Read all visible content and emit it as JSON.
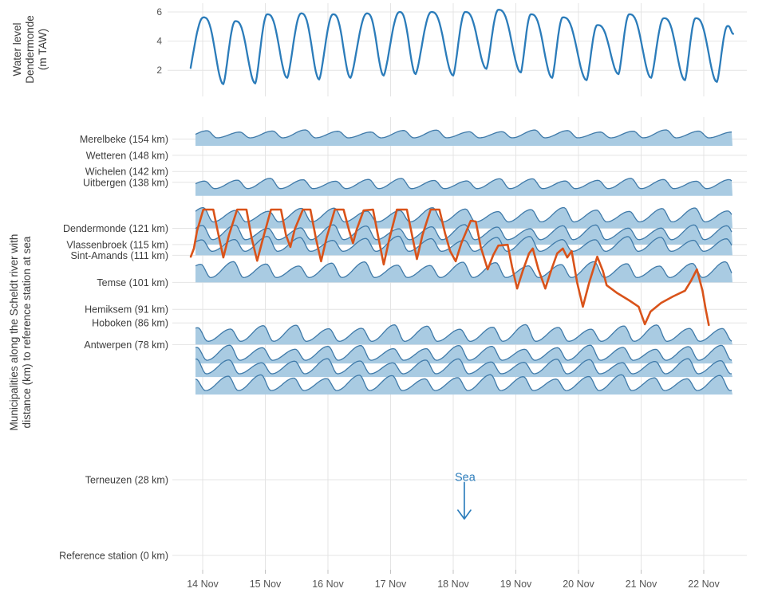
{
  "figure": {
    "description": "Tidal water levels along the Scheldt river",
    "background": "#ffffff"
  },
  "colors": {
    "tide_line": "#2b7cba",
    "ridge_fill": "#a9cbe2",
    "ridge_stroke": "#3f7aa9",
    "overlay_line": "#d9531a",
    "grid": "#e4e4e4",
    "tick_mark": "#c0c0c0",
    "axis_text": "#555555",
    "label_text": "#3c3c3c",
    "annotation": "#2e7ebc"
  },
  "chart_data": [
    {
      "type": "line",
      "panel": "top",
      "series_name": "Water level Dendermonde",
      "ylabel_lines": [
        "Water level",
        "Dendermonde",
        "(m TAW)"
      ],
      "yticks": [
        2,
        4,
        6
      ],
      "ylim": [
        0.5,
        6.5
      ],
      "x_unit": "days since 14 Nov 00:00",
      "xlim": [
        -0.22,
        8.5
      ],
      "grid": true,
      "extrema_t_value": [
        [
          -0.26,
          1.0
        ],
        [
          0.01,
          5.63
        ],
        [
          0.33,
          1.05
        ],
        [
          0.52,
          5.37
        ],
        [
          0.84,
          1.1
        ],
        [
          1.03,
          5.84
        ],
        [
          1.35,
          1.48
        ],
        [
          1.57,
          5.9
        ],
        [
          1.86,
          1.37
        ],
        [
          2.08,
          5.84
        ],
        [
          2.36,
          1.48
        ],
        [
          2.62,
          5.9
        ],
        [
          2.89,
          1.64
        ],
        [
          3.14,
          6.0
        ],
        [
          3.4,
          1.74
        ],
        [
          3.65,
          6.0
        ],
        [
          4.0,
          1.64
        ],
        [
          4.19,
          6.0
        ],
        [
          4.53,
          2.1
        ],
        [
          4.72,
          6.15
        ],
        [
          5.08,
          1.85
        ],
        [
          5.24,
          5.84
        ],
        [
          5.58,
          1.48
        ],
        [
          5.75,
          5.63
        ],
        [
          6.13,
          1.32
        ],
        [
          6.3,
          5.1
        ],
        [
          6.64,
          1.74
        ],
        [
          6.81,
          5.84
        ],
        [
          7.16,
          1.48
        ],
        [
          7.36,
          5.57
        ],
        [
          7.7,
          1.32
        ],
        [
          7.87,
          5.57
        ],
        [
          8.21,
          1.2
        ],
        [
          8.38,
          5.04
        ],
        [
          8.47,
          4.5
        ]
      ]
    },
    {
      "type": "ridgeline",
      "panel": "bottom",
      "ylabel_lines": [
        "Municipalities along the Scheldt river with",
        "distance (km) to reference station at sea"
      ],
      "x_tick_labels": [
        "14 Nov",
        "15 Nov",
        "16 Nov",
        "17 Nov",
        "18 Nov",
        "19 Nov",
        "20 Nov",
        "21 Nov",
        "22 Nov"
      ],
      "station_breaks": [
        {
          "label": "Merelbeke (154 km)",
          "km": 154
        },
        {
          "label": "Wetteren (148 km)",
          "km": 148
        },
        {
          "label": "Wichelen (142 km)",
          "km": 142
        },
        {
          "label": "Uitbergen (138 km)",
          "km": 138
        },
        {
          "label": "Dendermonde (121 km)",
          "km": 121
        },
        {
          "label": "Vlassenbroek (115 km)",
          "km": 115
        },
        {
          "label": "Sint-Amands (111 km)",
          "km": 111
        },
        {
          "label": "Temse (101 km)",
          "km": 101
        },
        {
          "label": "Hemiksem (91 km)",
          "km": 91
        },
        {
          "label": "Hoboken (86 km)",
          "km": 86
        },
        {
          "label": "Antwerpen (78 km)",
          "km": 78
        },
        {
          "label": "Terneuzen (28 km)",
          "km": 28
        },
        {
          "label": "Reference station (0 km)",
          "km": 0
        }
      ],
      "ridges": [
        {
          "km": 151.5,
          "amp": 20,
          "min": 10
        },
        {
          "km": 133.0,
          "amp": 22,
          "min": 9
        },
        {
          "km": 121.0,
          "amp": 26,
          "min": 8
        },
        {
          "km": 115.0,
          "amp": 25,
          "min": 6
        },
        {
          "km": 111.0,
          "amp": 24,
          "min": 5
        },
        {
          "km": 101.0,
          "amp": 26,
          "min": 6
        },
        {
          "km": 78.0,
          "amp": 25,
          "min": 4
        },
        {
          "km": 71.0,
          "amp": 23,
          "min": 4
        },
        {
          "km": 66.0,
          "amp": 23,
          "min": 4
        },
        {
          "km": 59.5,
          "amp": 25,
          "min": 5
        }
      ],
      "tide_period_days": 0.5234,
      "overlay_line": {
        "name": "Dendermonde water level (mapped to river distance)",
        "points_t_km": [
          [
            -0.19,
            110.5
          ],
          [
            -0.14,
            113.5
          ],
          [
            -0.09,
            120.0
          ],
          [
            0.01,
            127.9
          ],
          [
            0.17,
            127.9
          ],
          [
            0.24,
            120.0
          ],
          [
            0.33,
            110.2
          ],
          [
            0.42,
            118.5
          ],
          [
            0.55,
            127.9
          ],
          [
            0.7,
            127.9
          ],
          [
            0.78,
            117.6
          ],
          [
            0.87,
            109.0
          ],
          [
            0.96,
            117.0
          ],
          [
            1.09,
            127.9
          ],
          [
            1.25,
            127.9
          ],
          [
            1.33,
            118.5
          ],
          [
            1.4,
            114.1
          ],
          [
            1.47,
            120.6
          ],
          [
            1.6,
            127.9
          ],
          [
            1.72,
            127.9
          ],
          [
            1.81,
            117.0
          ],
          [
            1.89,
            108.8
          ],
          [
            1.98,
            117.6
          ],
          [
            2.11,
            127.9
          ],
          [
            2.25,
            127.9
          ],
          [
            2.34,
            120.0
          ],
          [
            2.4,
            115.5
          ],
          [
            2.46,
            120.6
          ],
          [
            2.57,
            127.6
          ],
          [
            2.72,
            127.9
          ],
          [
            2.81,
            117.0
          ],
          [
            2.89,
            107.6
          ],
          [
            2.98,
            117.0
          ],
          [
            3.1,
            127.9
          ],
          [
            3.26,
            127.9
          ],
          [
            3.35,
            117.6
          ],
          [
            3.42,
            109.6
          ],
          [
            3.51,
            118.5
          ],
          [
            3.64,
            127.9
          ],
          [
            3.78,
            127.9
          ],
          [
            3.87,
            119.1
          ],
          [
            3.95,
            112.6
          ],
          [
            4.04,
            108.8
          ],
          [
            4.13,
            115.5
          ],
          [
            4.28,
            123.8
          ],
          [
            4.36,
            123.5
          ],
          [
            4.44,
            114.1
          ],
          [
            4.55,
            105.8
          ],
          [
            4.64,
            111.1
          ],
          [
            4.72,
            114.6
          ],
          [
            4.87,
            114.9
          ],
          [
            4.94,
            106.7
          ],
          [
            5.02,
            98.7
          ],
          [
            5.11,
            105.2
          ],
          [
            5.21,
            111.7
          ],
          [
            5.27,
            113.5
          ],
          [
            5.36,
            105.8
          ],
          [
            5.47,
            98.7
          ],
          [
            5.56,
            105.2
          ],
          [
            5.66,
            111.7
          ],
          [
            5.75,
            113.5
          ],
          [
            5.82,
            110.2
          ],
          [
            5.89,
            112.6
          ],
          [
            5.98,
            100.8
          ],
          [
            6.07,
            92.0
          ],
          [
            6.17,
            100.8
          ],
          [
            6.3,
            110.5
          ],
          [
            6.39,
            105.2
          ],
          [
            6.45,
            99.9
          ],
          [
            6.62,
            97.0
          ],
          [
            6.81,
            94.3
          ],
          [
            6.96,
            92.0
          ],
          [
            7.01,
            88.7
          ],
          [
            7.06,
            85.5
          ],
          [
            7.11,
            88.1
          ],
          [
            7.15,
            90.2
          ],
          [
            7.32,
            93.4
          ],
          [
            7.51,
            95.8
          ],
          [
            7.7,
            97.9
          ],
          [
            7.8,
            101.7
          ],
          [
            7.89,
            105.8
          ],
          [
            7.98,
            97.9
          ],
          [
            8.03,
            91.1
          ],
          [
            8.08,
            85.2
          ]
        ]
      },
      "annotation": {
        "text": "Sea",
        "t": 4.19,
        "km_text": 29,
        "km_arrow_top": 27,
        "km_arrow_tip": 13.5
      }
    }
  ]
}
